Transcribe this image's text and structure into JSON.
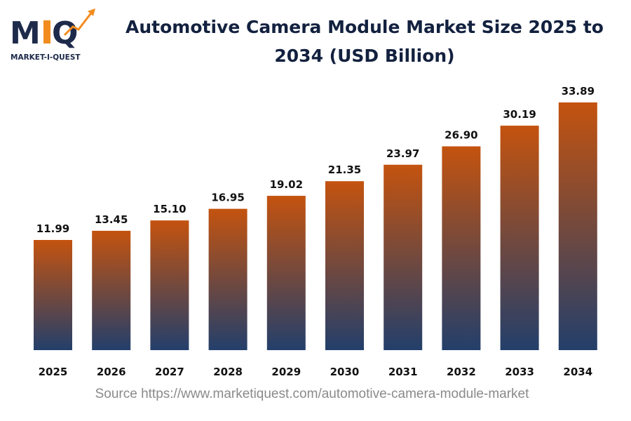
{
  "logo": {
    "text": "MIQ",
    "subtitle": "MARKET-I-QUEST"
  },
  "chart_data": {
    "type": "bar",
    "title": "Automotive Camera Module Market Size 2025 to 2034 (USD Billion)",
    "categories": [
      "2025",
      "2026",
      "2027",
      "2028",
      "2029",
      "2030",
      "2031",
      "2032",
      "2033",
      "2034"
    ],
    "values": [
      11.99,
      13.45,
      15.1,
      16.95,
      19.02,
      21.35,
      23.97,
      26.9,
      30.19,
      33.89
    ],
    "data_labels": [
      "11.99",
      "13.45",
      "15.10",
      "16.95",
      "19.02",
      "21.35",
      "23.97",
      "26.90",
      "30.19",
      "33.89"
    ],
    "xlabel": "",
    "ylabel": "",
    "grid": false,
    "colors": {
      "bar_top": "#c4530f",
      "bar_bottom": "#233f6b"
    }
  },
  "source": "Source https://www.marketiquest.com/automotive-camera-module-market"
}
